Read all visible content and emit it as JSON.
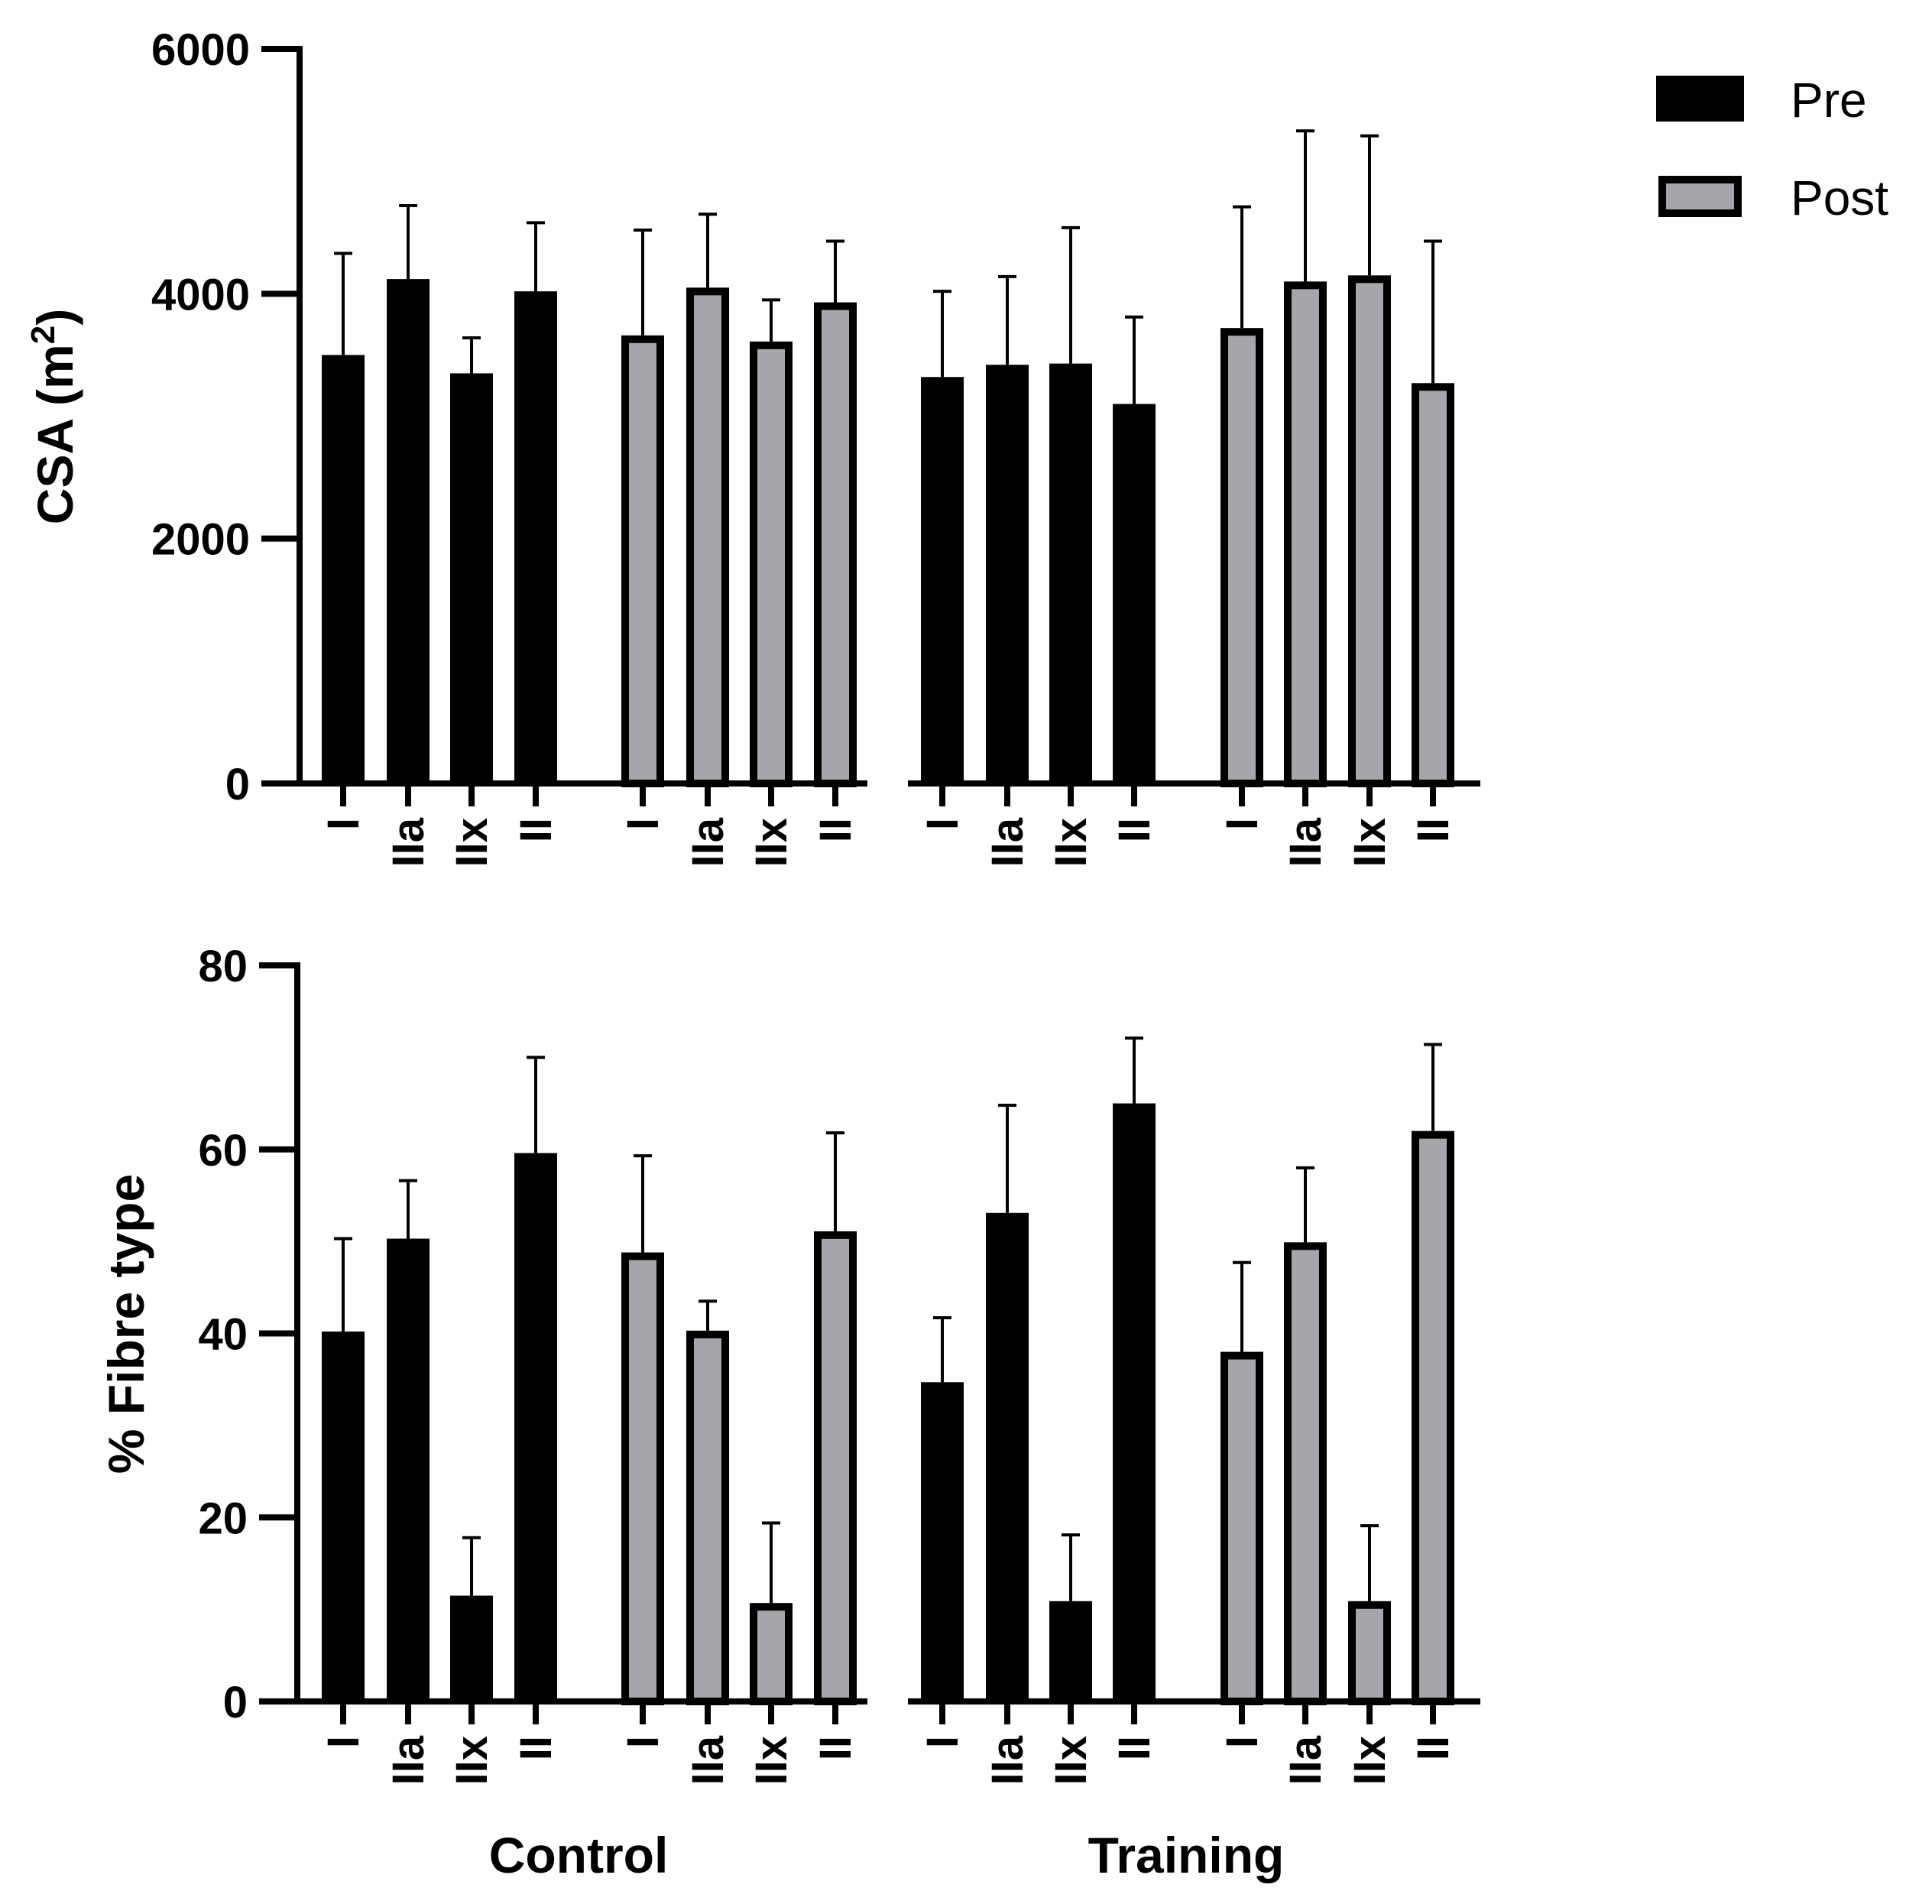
{
  "chart_data": [
    {
      "type": "bar",
      "ylabel_main": "CSA (m",
      "ylabel_sup": "2",
      "ylabel_close": ")",
      "ylim": [
        0,
        6000
      ],
      "yticks": [
        0,
        2000,
        4000,
        6000
      ],
      "ytick_labels": [
        "0",
        "2000",
        "4000",
        "6000"
      ],
      "groups": [
        {
          "group": "Control",
          "series": "Pre",
          "categories": [
            "I",
            "IIa",
            "IIx",
            "II"
          ],
          "values": [
            3500,
            4120,
            3350,
            4020
          ],
          "errors": [
            830,
            600,
            290,
            560
          ]
        },
        {
          "group": "Control",
          "series": "Post",
          "categories": [
            "I",
            "IIa",
            "IIx",
            "II"
          ],
          "values": [
            3660,
            4050,
            3610,
            3930
          ],
          "errors": [
            860,
            600,
            340,
            500
          ]
        },
        {
          "group": "Training",
          "series": "Pre",
          "categories": [
            "I",
            "IIa",
            "IIx",
            "II"
          ],
          "values": [
            3320,
            3420,
            3430,
            3100
          ],
          "errors": [
            700,
            720,
            1110,
            710
          ]
        },
        {
          "group": "Training",
          "series": "Post",
          "categories": [
            "I",
            "IIa",
            "IIx",
            "II"
          ],
          "values": [
            3720,
            4100,
            4150,
            3270
          ],
          "errors": [
            990,
            1230,
            1140,
            1160
          ]
        }
      ]
    },
    {
      "type": "bar",
      "ylabel": "% Fibre type",
      "ylim": [
        0,
        80
      ],
      "yticks": [
        0,
        20,
        40,
        60,
        80
      ],
      "ytick_labels": [
        "0",
        "20",
        "40",
        "60",
        "80"
      ],
      "groups": [
        {
          "group": "Control",
          "series": "Pre",
          "categories": [
            "I",
            "IIa",
            "IIx",
            "II"
          ],
          "values": [
            40.2,
            50.3,
            11.5,
            59.6
          ],
          "errors": [
            10.1,
            6.3,
            6.3,
            10.4
          ]
        },
        {
          "group": "Control",
          "series": "Post",
          "categories": [
            "I",
            "IIa",
            "IIx",
            "II"
          ],
          "values": [
            48.8,
            40.3,
            10.7,
            51.1
          ],
          "errors": [
            10.5,
            3.2,
            8.7,
            10.7
          ]
        },
        {
          "group": "Training",
          "series": "Pre",
          "categories": [
            "I",
            "IIa",
            "IIx",
            "II"
          ],
          "values": [
            34.7,
            53.1,
            10.9,
            65.0
          ],
          "errors": [
            7.0,
            11.7,
            7.2,
            7.1
          ]
        },
        {
          "group": "Training",
          "series": "Post",
          "categories": [
            "I",
            "IIa",
            "IIx",
            "II"
          ],
          "values": [
            38.0,
            49.9,
            10.9,
            62.0
          ],
          "errors": [
            9.7,
            8.1,
            8.2,
            9.4
          ]
        }
      ]
    }
  ],
  "legend": [
    {
      "label": "Pre",
      "color": "#000000"
    },
    {
      "label": "Post",
      "color": "#a6a6a8"
    }
  ],
  "group_labels": [
    "Control",
    "Training"
  ],
  "colors": {
    "pre": "#000000",
    "post": "#a6a6a8",
    "axis": "#000000"
  }
}
